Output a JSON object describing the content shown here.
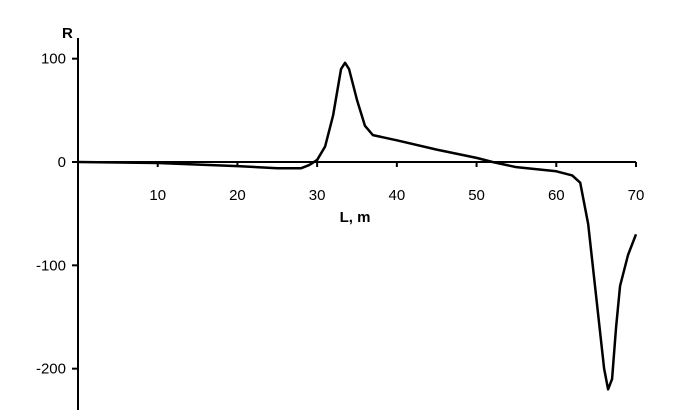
{
  "chart_data": {
    "type": "line",
    "y_label": "R",
    "x_label": "L, m",
    "x": [
      0,
      10,
      20,
      25,
      28,
      29,
      30,
      31,
      32,
      33,
      33.5,
      34,
      35,
      36,
      37,
      40,
      45,
      50,
      52,
      55,
      60,
      62,
      63,
      64,
      65,
      66,
      66.5,
      67,
      67.5,
      68,
      69,
      70
    ],
    "series": [
      {
        "name": "R",
        "color": "#000000",
        "values": [
          0,
          -1,
          -4,
          -6,
          -6,
          -3,
          2,
          15,
          45,
          90,
          96,
          90,
          60,
          35,
          26,
          21,
          12,
          4,
          0,
          -5,
          -9,
          -13,
          -20,
          -60,
          -130,
          -200,
          -220,
          -210,
          -160,
          -120,
          -90,
          -70
        ]
      }
    ],
    "xlim": [
      0,
      70
    ],
    "ylim": [
      -240,
      120
    ],
    "xticks": [
      10,
      20,
      30,
      40,
      50,
      60,
      70
    ],
    "yticks": [
      -200,
      -100,
      0,
      100
    ],
    "grid": false
  }
}
